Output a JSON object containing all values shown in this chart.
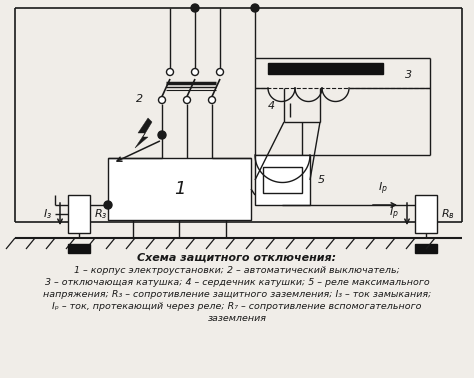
{
  "title": "Схема защитного отключения:",
  "line1": "1 – корпус электроустановки; 2 – автоматический выключатель;",
  "line2": "3 – отключающая катушка; 4 – сердечник катушки; 5 – реле максимального",
  "line3": "напряжения; R₃ – сопротивление защитного заземления; I₃ – ток замыкания;",
  "line4": "Iₚ – ток, протекающий через реле; R₇ – сопротивление вспомогательного",
  "line5": "заземления",
  "bg_color": "#f0ede8",
  "line_color": "#1a1a1a"
}
